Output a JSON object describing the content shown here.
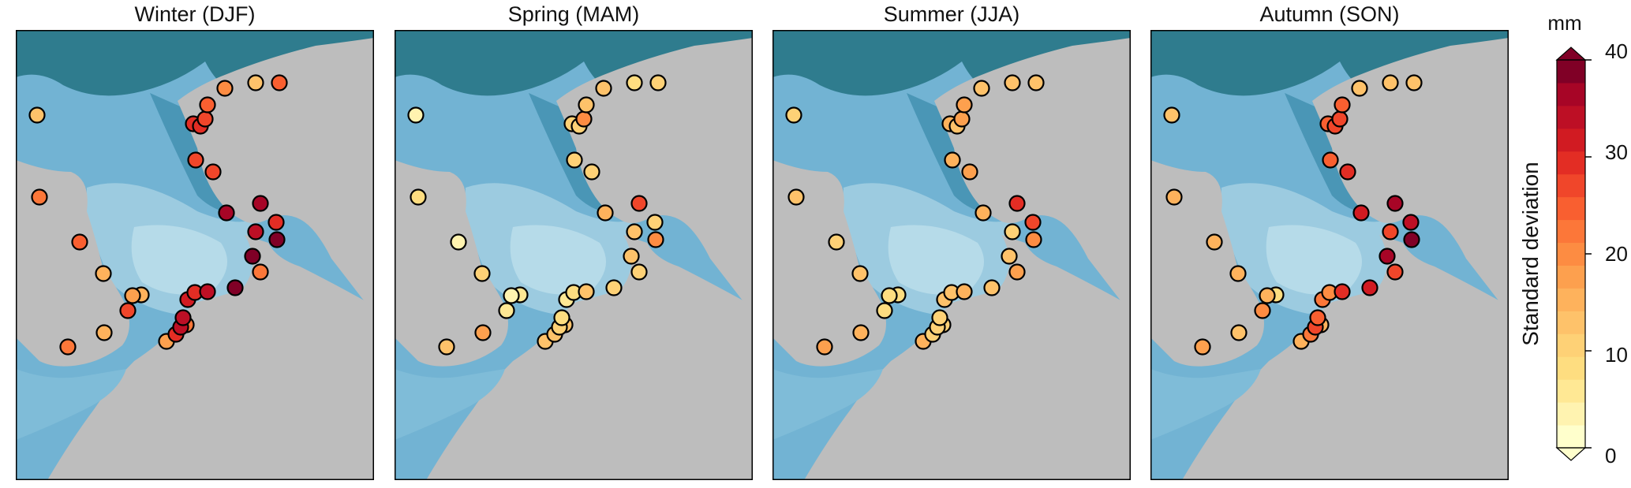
{
  "panels": [
    {
      "title": "Winter (DJF)",
      "values": [
        12,
        24,
        22,
        16,
        15,
        22,
        18,
        30,
        34,
        33,
        31,
        30,
        34,
        38,
        22,
        26,
        18,
        16,
        40,
        34,
        36,
        40,
        36,
        30,
        27,
        28,
        30,
        30,
        26,
        24,
        19,
        14,
        24,
        22
      ]
    },
    {
      "title": "Spring (MAM)",
      "values": [
        3,
        4,
        13,
        10,
        5,
        12,
        14,
        12,
        10,
        8,
        7,
        9,
        12,
        11,
        10,
        6,
        4,
        17,
        14,
        13,
        15,
        20,
        26,
        11,
        11,
        11,
        11,
        11,
        19,
        13,
        12,
        9,
        10,
        9
      ]
    },
    {
      "title": "Summer (JJA)",
      "values": [
        10,
        10,
        17,
        12,
        8,
        11,
        15,
        10,
        11,
        10,
        13,
        12,
        16,
        14,
        18,
        9,
        8,
        16,
        12,
        10,
        15,
        19,
        30,
        26,
        17,
        16,
        15,
        13,
        17,
        17,
        13,
        12,
        13,
        12
      ]
    },
    {
      "title": "Autumn (SON)",
      "values": [
        13,
        15,
        17,
        15,
        8,
        15,
        16,
        23,
        28,
        25,
        22,
        20,
        29,
        32,
        28,
        19,
        16,
        12,
        36,
        28,
        32,
        40,
        36,
        35,
        30,
        25,
        25,
        26,
        28,
        24,
        13,
        12,
        14,
        16
      ]
    }
  ],
  "colorbar": {
    "unit": "mm",
    "label": "Standard deviation",
    "min": 0,
    "max": 40,
    "ticks": [
      "0",
      "10",
      "20",
      "30",
      "40"
    ],
    "colors": [
      "#ffffcc",
      "#fff3b0",
      "#ffe894",
      "#fedd80",
      "#fed176",
      "#fec26a",
      "#feb25c",
      "#fda04e",
      "#fd8c42",
      "#fc7739",
      "#f95f30",
      "#f0462a",
      "#e32d24",
      "#d11b22",
      "#bd0f25",
      "#a70526",
      "#800026"
    ]
  }
}
